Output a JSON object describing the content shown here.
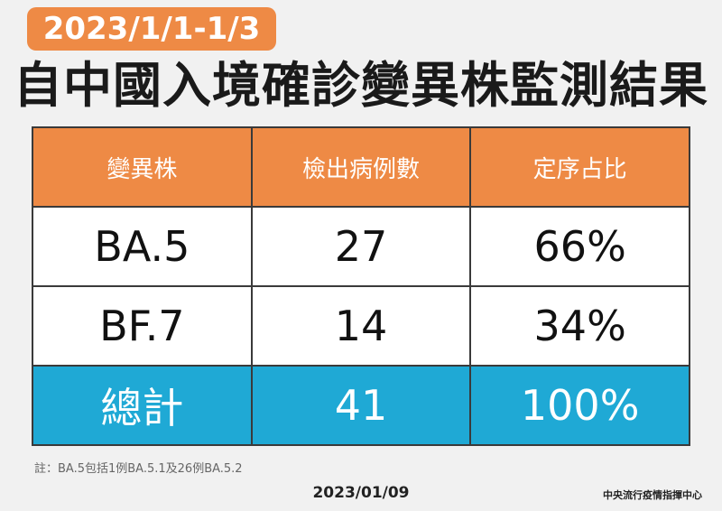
{
  "header": {
    "badge": "2023/1/1-1/3",
    "title": "自中國入境確診變異株監測結果"
  },
  "table": {
    "columns": [
      "變異株",
      "檢出病例數",
      "定序占比"
    ],
    "rows": [
      [
        "BA.5",
        "27",
        "66%"
      ],
      [
        "BF.7",
        "14",
        "34%"
      ]
    ],
    "total": [
      "總計",
      "41",
      "100%"
    ]
  },
  "footer": {
    "note": "註：BA.5包括1例BA.5.1及26例BA.5.2",
    "date": "2023/01/09",
    "source": "中央流行疫情指揮中心"
  }
}
